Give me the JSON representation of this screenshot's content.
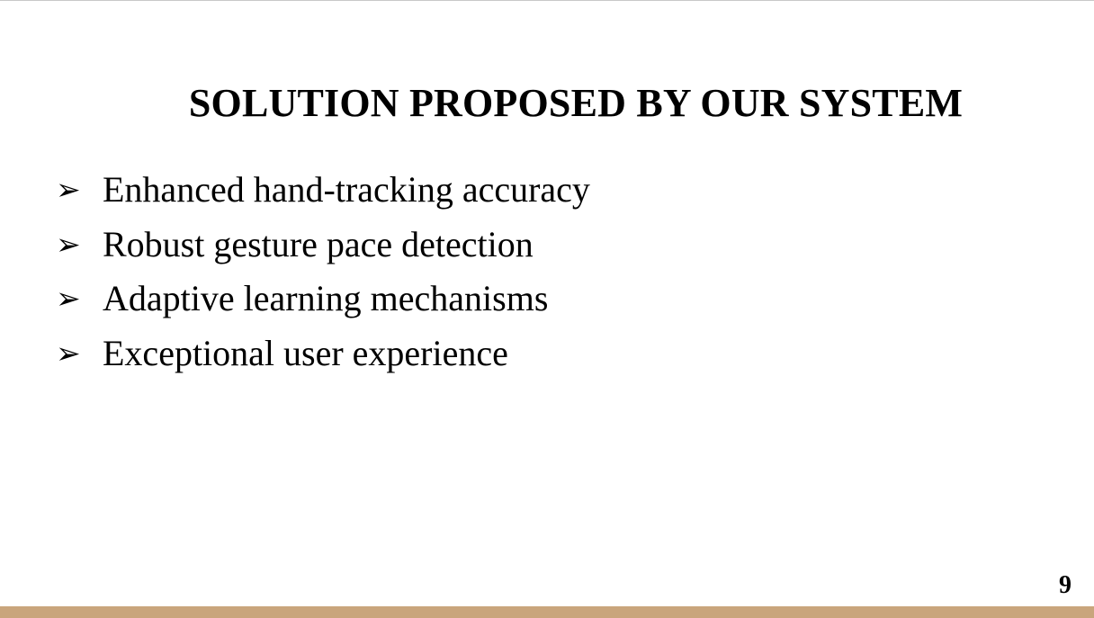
{
  "slide": {
    "title": "SOLUTION PROPOSED BY OUR SYSTEM",
    "bullet_icon": "arrowhead-bullet-icon",
    "bullet_glyph": "➢",
    "bullets": [
      {
        "text": "Enhanced hand-tracking accuracy"
      },
      {
        "text": "Robust gesture pace detection"
      },
      {
        "text": "Adaptive learning mechanisms"
      },
      {
        "text": "Exceptional user experience"
      }
    ],
    "page_number": "9"
  },
  "colors": {
    "background": "#ffffff",
    "text": "#000000",
    "footer_bar": "#c9a57c"
  }
}
